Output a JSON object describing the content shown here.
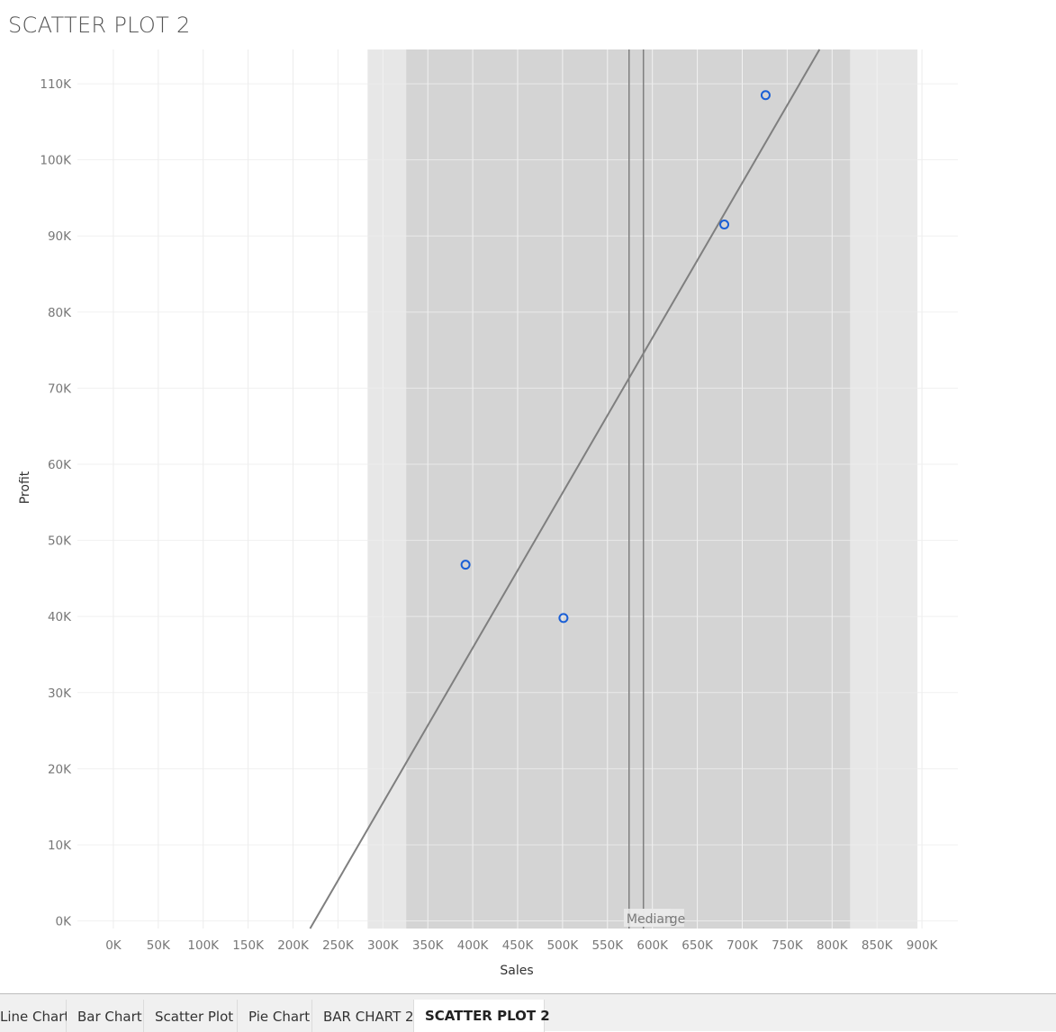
{
  "title": "SCATTER PLOT 2",
  "tabs": [
    {
      "label": "Line Chart",
      "active": false
    },
    {
      "label": "Bar Chart",
      "active": false
    },
    {
      "label": "Scatter Plot",
      "active": false
    },
    {
      "label": "Pie Chart",
      "active": false
    },
    {
      "label": "BAR CHART 2",
      "active": false
    },
    {
      "label": "SCATTER PLOT 2",
      "active": true
    }
  ],
  "colors": {
    "point": "#1a5fd6",
    "trend": "#7f7f7f",
    "band_outer": "#e7e7e7",
    "band_inner": "#d4d4d4",
    "reference_line": "#7f7f7f"
  },
  "chart_data": {
    "type": "scatter",
    "xlabel": "Sales",
    "ylabel": "Profit",
    "xlim": [
      -40000,
      940000
    ],
    "ylim": [
      -1000,
      114500
    ],
    "xticks": [
      0,
      50000,
      100000,
      150000,
      200000,
      250000,
      300000,
      350000,
      400000,
      450000,
      500000,
      550000,
      600000,
      650000,
      700000,
      750000,
      800000,
      850000,
      900000
    ],
    "xtick_labels": [
      "0K",
      "50K",
      "100K",
      "150K",
      "200K",
      "250K",
      "300K",
      "350K",
      "400K",
      "450K",
      "500K",
      "550K",
      "600K",
      "650K",
      "700K",
      "750K",
      "800K",
      "850K",
      "900K"
    ],
    "yticks": [
      0,
      10000,
      20000,
      30000,
      40000,
      50000,
      60000,
      70000,
      80000,
      90000,
      100000,
      110000
    ],
    "ytick_labels": [
      "0K",
      "10K",
      "20K",
      "30K",
      "40K",
      "50K",
      "60K",
      "70K",
      "80K",
      "90K",
      "100K",
      "110K"
    ],
    "grid": true,
    "points": [
      {
        "x": 392000,
        "y": 46800
      },
      {
        "x": 501000,
        "y": 39800
      },
      {
        "x": 680000,
        "y": 91500
      },
      {
        "x": 726000,
        "y": 108500
      }
    ],
    "trend_line": {
      "x0": 219000,
      "y0": -1000,
      "x1": 786000,
      "y1": 114500
    },
    "reference_band_outer": [
      283000,
      895000
    ],
    "reference_band_inner": [
      326000,
      820000
    ],
    "reference_lines": [
      {
        "x": 574000,
        "label": "Average"
      },
      {
        "x": 590000,
        "label": "Median"
      }
    ]
  }
}
